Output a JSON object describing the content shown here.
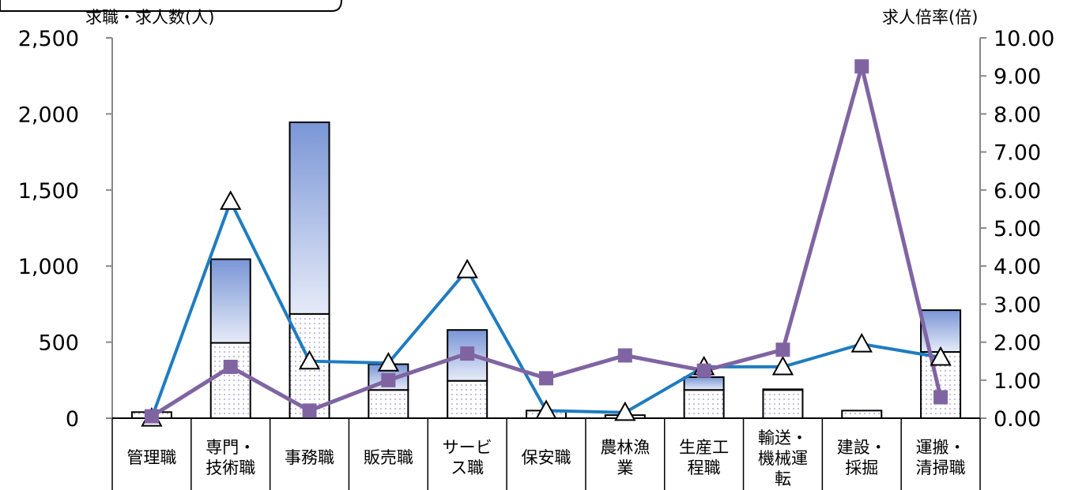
{
  "chart_data": {
    "type": "bar",
    "left_axis_title": "求職・求人数(人)",
    "right_axis_title": "求人倍率(倍)",
    "y_left_range": [
      0,
      2500
    ],
    "y_left_ticks": [
      "0",
      "500",
      "1,000",
      "1,500",
      "2,000",
      "2,500"
    ],
    "y_right_range": [
      0,
      10
    ],
    "y_right_ticks": [
      "0.00",
      "1.00",
      "2.00",
      "3.00",
      "4.00",
      "5.00",
      "6.00",
      "7.00",
      "8.00",
      "9.00",
      "10.00"
    ],
    "categories": [
      [
        "管理職"
      ],
      [
        "専門・",
        "技術職"
      ],
      [
        "事務職"
      ],
      [
        "販売職"
      ],
      [
        "サービ",
        "ス職"
      ],
      [
        "保安職"
      ],
      [
        "農林漁",
        "業"
      ],
      [
        "生産工",
        "程職"
      ],
      [
        "輸送・",
        "機械運",
        "転"
      ],
      [
        "建設・",
        "採掘"
      ],
      [
        "運搬・",
        "清掃職"
      ]
    ],
    "bar_total": [
      40,
      1045,
      1945,
      355,
      580,
      50,
      20,
      270,
      190,
      50,
      710
    ],
    "bar_lower": [
      40,
      495,
      685,
      185,
      245,
      50,
      20,
      185,
      185,
      50,
      435
    ],
    "line_triangle": [
      0.0,
      5.7,
      1.5,
      1.45,
      3.9,
      0.2,
      0.15,
      1.35,
      1.35,
      1.95,
      1.6
    ],
    "line_square": [
      0.05,
      1.35,
      0.2,
      1.0,
      1.7,
      1.05,
      1.65,
      1.25,
      1.8,
      9.25,
      0.55
    ],
    "colors": {
      "line_triangle": "#1f7cc0",
      "line_square": "#8064a2",
      "bar_fill_top": "#7a96d6",
      "bar_fill_bottom": "#e6ebf8",
      "dot_color": "#9b8fcf",
      "axis": "#888888"
    },
    "grid": false
  }
}
